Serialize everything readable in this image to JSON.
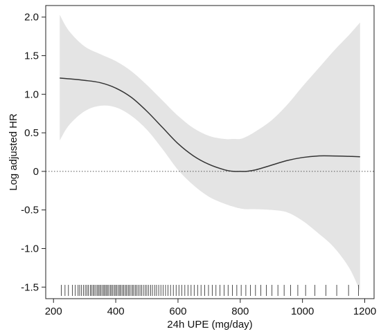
{
  "chart_data": {
    "type": "line",
    "title": "",
    "xlabel": "24h UPE (mg/day)",
    "ylabel": "Log adjusted HR",
    "xlim": [
      175,
      1230
    ],
    "ylim": [
      -1.65,
      2.15
    ],
    "x_ticks": [
      200,
      400,
      600,
      800,
      1000,
      1200
    ],
    "x_tick_labels": [
      "200",
      "400",
      "600",
      "800",
      "1000",
      "1200"
    ],
    "y_ticks": [
      2.0,
      1.5,
      1.0,
      0.5,
      0,
      -0.5,
      -1.0,
      -1.5
    ],
    "y_tick_labels": [
      "2.0",
      "1.5",
      "1.0",
      "0.5",
      "0",
      "-0.5",
      "-1.0",
      "-1.5"
    ],
    "grid": false,
    "reference_line": {
      "y": 0,
      "style": "dotted"
    },
    "series": [
      {
        "x": [
          220,
          250,
          300,
          350,
          400,
          450,
          500,
          550,
          600,
          650,
          700,
          750,
          780,
          800,
          820,
          850,
          900,
          950,
          1000,
          1050,
          1100,
          1150,
          1185
        ],
        "y": [
          1.21,
          1.2,
          1.18,
          1.15,
          1.08,
          0.96,
          0.78,
          0.57,
          0.36,
          0.2,
          0.09,
          0.02,
          0.0,
          0.0,
          0.0,
          0.02,
          0.08,
          0.14,
          0.18,
          0.2,
          0.2,
          0.195,
          0.19
        ],
        "lower": [
          0.4,
          0.6,
          0.78,
          0.85,
          0.83,
          0.72,
          0.54,
          0.29,
          0.02,
          -0.18,
          -0.33,
          -0.42,
          -0.46,
          -0.48,
          -0.49,
          -0.49,
          -0.5,
          -0.53,
          -0.64,
          -0.8,
          -0.98,
          -1.25,
          -1.55
        ],
        "upper": [
          2.03,
          1.82,
          1.62,
          1.52,
          1.43,
          1.3,
          1.12,
          0.92,
          0.72,
          0.56,
          0.46,
          0.42,
          0.42,
          0.42,
          0.45,
          0.52,
          0.66,
          0.86,
          1.1,
          1.33,
          1.56,
          1.77,
          1.93
        ]
      }
    ],
    "rug": [
      225,
      237,
      248,
      261,
      270,
      279,
      284,
      290,
      296,
      302,
      307,
      312,
      318,
      322,
      327,
      331,
      336,
      341,
      345,
      349,
      353,
      358,
      362,
      366,
      370,
      374,
      378,
      383,
      387,
      391,
      396,
      400,
      404,
      409,
      413,
      417,
      422,
      426,
      431,
      435,
      440,
      444,
      449,
      454,
      458,
      463,
      468,
      473,
      478,
      483,
      489,
      495,
      500,
      506,
      512,
      518,
      525,
      531,
      538,
      545,
      552,
      560,
      568,
      576,
      585,
      594,
      603,
      612,
      622,
      632,
      642,
      652,
      663,
      674,
      686,
      698,
      710,
      722,
      735,
      748,
      761,
      775,
      789,
      803,
      818,
      833,
      849,
      866,
      884,
      902,
      921,
      941,
      962,
      985,
      1010,
      1040,
      1075,
      1110,
      1148,
      1180
    ],
    "colors": {
      "line": "#333333",
      "band": "#e4e4e4",
      "axis": "#222222",
      "rug": "#222222"
    }
  }
}
